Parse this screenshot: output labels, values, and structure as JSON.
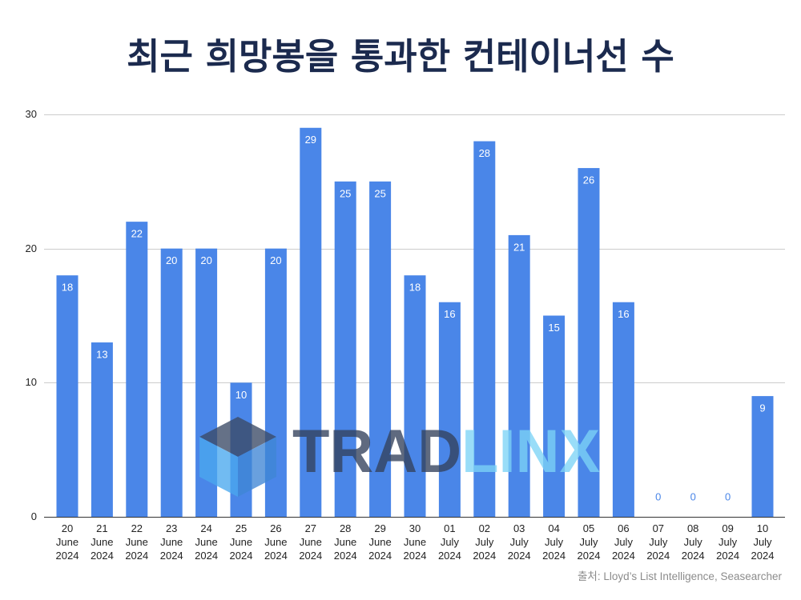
{
  "source": "출처: Lloyd’s List Intelligence, Seasearcher",
  "watermark": {
    "part1": "TRAD",
    "part2": "LINX",
    "icon": "cube-icon"
  },
  "colors": {
    "bar": "#4a86e8",
    "title": "#1b2a4e",
    "grid": "#cccccc",
    "axis": "#333333",
    "inside_label": "#ffffff",
    "watermark_dark": "#33415c",
    "watermark_light": "#7dd4f7"
  },
  "chart_data": {
    "type": "bar",
    "title": "최근 희망봉을 통과한 컨테이너선 수",
    "categories": [
      "20 June 2024",
      "21 June 2024",
      "22 June 2024",
      "23 June 2024",
      "24 June 2024",
      "25 June 2024",
      "26 June 2024",
      "27 June 2024",
      "28 June 2024",
      "29 June 2024",
      "30 June 2024",
      "01 July 2024",
      "02 July 2024",
      "03 July 2024",
      "04 July 2024",
      "05 July 2024",
      "06 July 2024",
      "07 July 2024",
      "08 July 2024",
      "09 July 2024",
      "10 July 2024"
    ],
    "values": [
      18,
      13,
      22,
      20,
      20,
      10,
      20,
      29,
      25,
      25,
      18,
      16,
      28,
      21,
      15,
      26,
      16,
      0,
      0,
      0,
      9
    ],
    "ylim": [
      0,
      30
    ],
    "yticks": [
      0,
      10,
      20,
      30
    ],
    "grid": true,
    "data_labels": true
  }
}
